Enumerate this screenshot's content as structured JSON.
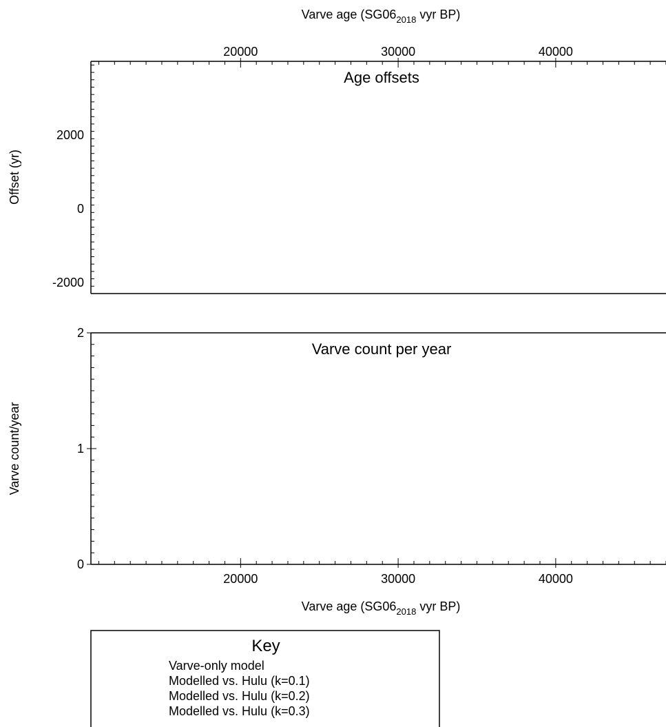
{
  "chart_data": [
    {
      "type": "line",
      "title": "Age offsets",
      "xlabel": "Varve age (SG06",
      "xlabel_sub": "2018",
      "xlabel_tail": " vyr BP)",
      "ylabel": "Offset (yr)",
      "xlim": [
        10500,
        47000
      ],
      "ylim": [
        -2300,
        4000
      ],
      "x_ticks": [
        20000,
        30000,
        40000
      ],
      "y_ticks": [
        -2000,
        0,
        2000
      ],
      "x_tick_labels": [
        "20000",
        "30000",
        "40000"
      ],
      "y_tick_labels": [
        "-2000",
        "0",
        "2000"
      ],
      "x_axis_position": "top",
      "series": []
    },
    {
      "type": "line",
      "title": "Varve count per year",
      "xlabel": "Varve age (SG06",
      "xlabel_sub": "2018",
      "xlabel_tail": " vyr BP)",
      "ylabel": "Varve count/year",
      "xlim": [
        10500,
        47000
      ],
      "ylim": [
        0,
        2
      ],
      "x_ticks": [
        20000,
        30000,
        40000
      ],
      "y_ticks": [
        0,
        1,
        2
      ],
      "x_tick_labels": [
        "20000",
        "30000",
        "40000"
      ],
      "y_tick_labels": [
        "0",
        "1",
        "2"
      ],
      "x_axis_position": "bottom",
      "series": []
    }
  ],
  "legend": {
    "title": "Key",
    "items": [
      "Varve-only model",
      "Modelled vs. Hulu (k=0.1)",
      "Modelled vs. Hulu (k=0.2)",
      "Modelled vs. Hulu (k=0.3)"
    ]
  }
}
